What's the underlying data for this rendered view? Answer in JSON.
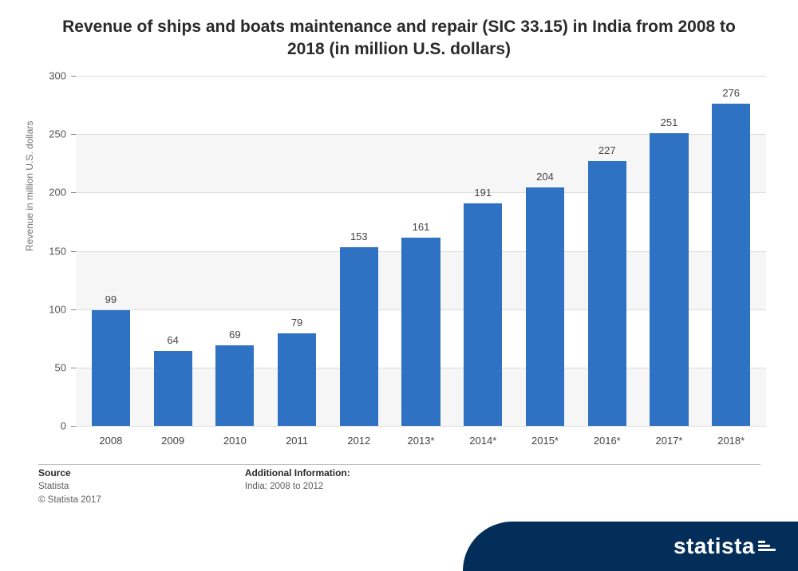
{
  "title": "Revenue of ships and boats maintenance and repair (SIC 33.15) in India from 2008 to 2018 (in million U.S. dollars)",
  "chart": {
    "type": "bar",
    "categories": [
      "2008",
      "2009",
      "2010",
      "2011",
      "2012",
      "2013*",
      "2014*",
      "2015*",
      "2016*",
      "2017*",
      "2018*"
    ],
    "values": [
      99,
      64,
      69,
      79,
      153,
      161,
      191,
      204,
      227,
      251,
      276
    ],
    "bar_color": "#2f71c3",
    "ylabel": "Revenue in million U.S. dollars",
    "ylim": [
      0,
      300
    ],
    "ytick_step": 50,
    "label_fontsize": 13,
    "title_fontsize": 21,
    "background_band_colors": [
      "#f6f6f6",
      "#ffffff"
    ],
    "grid_color": "#dddddd",
    "axis_color": "#aaaaaa",
    "text_color": "#444444",
    "bar_width": 0.62
  },
  "footer": {
    "source_heading": "Source",
    "source_text": "Statista",
    "copyright": "© Statista 2017",
    "additional_heading": "Additional Information:",
    "additional_text": "India; 2008 to 2012",
    "logo_text": "statista",
    "logo_bg_color": "#032e5a"
  }
}
